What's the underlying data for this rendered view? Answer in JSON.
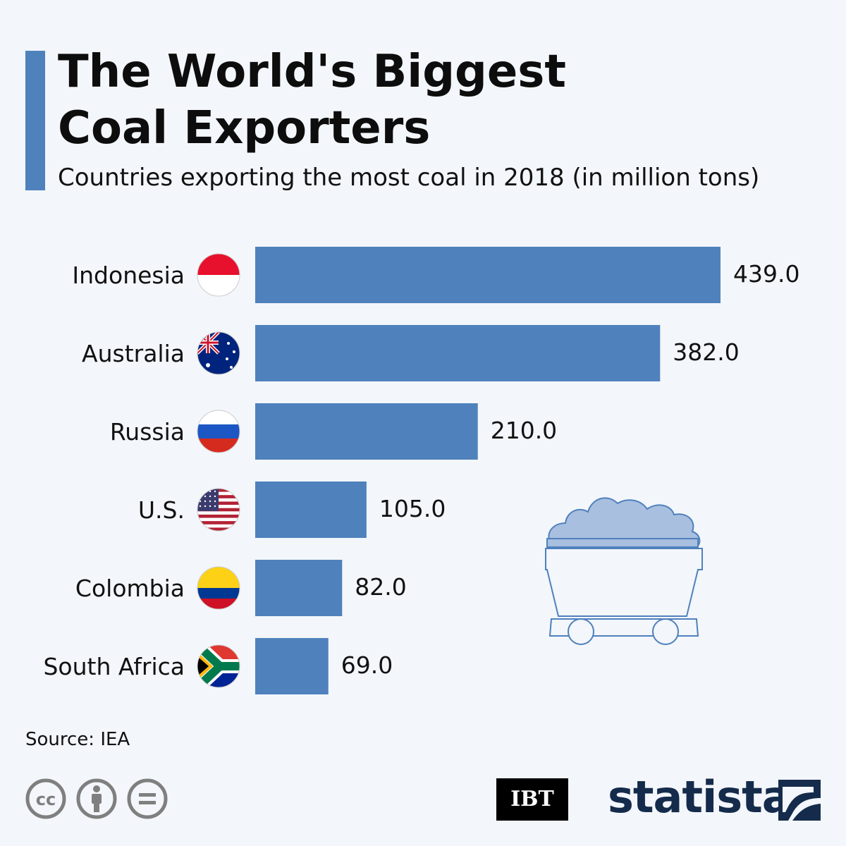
{
  "header": {
    "title_line1": "The World's Biggest",
    "title_line2": "Coal Exporters",
    "subtitle": "Countries exporting the most coal in 2018 (in million tons)"
  },
  "chart_data": {
    "type": "bar",
    "orientation": "horizontal",
    "title": "The World's Biggest Coal Exporters",
    "subtitle": "Countries exporting the most coal in 2018 (in million tons)",
    "categories": [
      "Indonesia",
      "Australia",
      "Russia",
      "U.S.",
      "Colombia",
      "South Africa"
    ],
    "values": [
      439.0,
      382.0,
      210.0,
      105.0,
      82.0,
      69.0
    ],
    "value_labels": [
      "439.0",
      "382.0",
      "210.0",
      "105.0",
      "82.0",
      "69.0"
    ],
    "flags": [
      "indonesia-flag-icon",
      "australia-flag-icon",
      "russia-flag-icon",
      "us-flag-icon",
      "colombia-flag-icon",
      "south-africa-flag-icon"
    ],
    "xlabel": "",
    "ylabel": "",
    "xlim": [
      0,
      439
    ],
    "unit": "million tons",
    "bar_color": "#4f81bd",
    "grid": false,
    "legend": "none"
  },
  "footer": {
    "source": "Source: IEA",
    "license_icons": [
      "cc-icon",
      "attribution-icon",
      "no-derivatives-icon"
    ],
    "partner_logo": "IBT",
    "brand": "statista"
  },
  "colors": {
    "accent": "#4f81bd",
    "background": "#f3f6fa",
    "brand": "#152b4b"
  }
}
